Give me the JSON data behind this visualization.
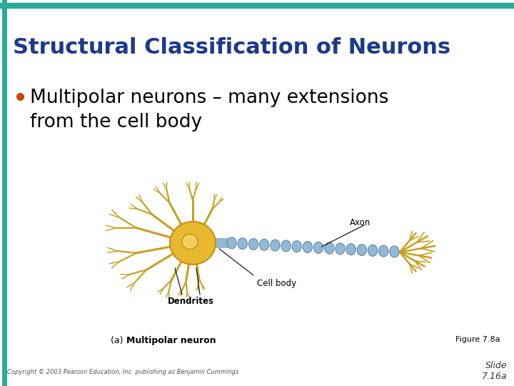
{
  "title": "Structural Classification of Neurons",
  "title_color": "#1a3a8c",
  "title_fontsize": 22,
  "bullet_dot_color": "#cc4400",
  "bullet_text_line1": "Multipolar neurons – many extensions",
  "bullet_text_line2": "from the cell body",
  "bullet_fontsize": 19,
  "bullet_color": "#000000",
  "header_bar_color": "#2aaa99",
  "left_bar_color": "#2aaa99",
  "background_color": "#ffffff",
  "figure_ref": "Figure 7.8a",
  "figure_ref_color": "#000000",
  "copyright_text": "Copyright © 2003 Pearson Education, Inc. publishing as Benjamin Cummings",
  "slide_text": "Slide\n7.16a",
  "soma_color": "#e8b830",
  "soma_edge_color": "#c89010",
  "nucleus_color": "#f0d060",
  "dendrite_color": "#c8a020",
  "axon_color": "#90b8d8",
  "axon_edge_color": "#608098",
  "terminal_color": "#c8a020"
}
